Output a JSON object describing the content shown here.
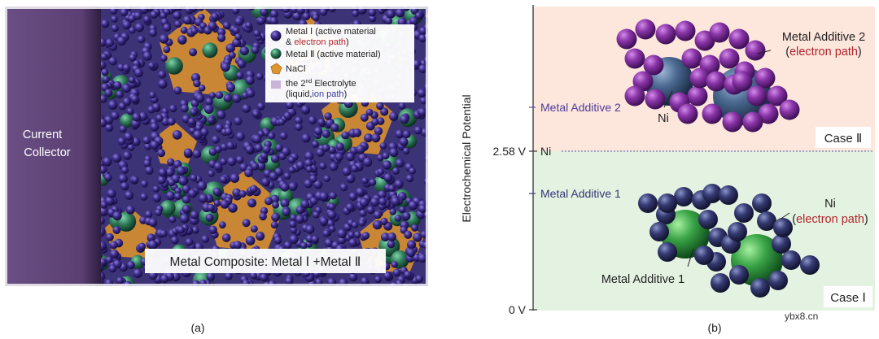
{
  "panel_a": {
    "caption": "(a)",
    "current_collector": [
      "Current",
      "Collector"
    ],
    "legend": {
      "metal1": {
        "pre": "Metal Ⅰ (active material",
        "line2_pre": "& ",
        "line2_red": "electron path",
        "line2_post": ")"
      },
      "metal2": {
        "text": "Metal Ⅱ (active material)"
      },
      "nacl": {
        "text": "NaCl"
      },
      "electrolyte": {
        "line1_pre": "the 2",
        "line1_sup": "nd",
        "line1_post": " Electrolyte",
        "line2_pre": "(liquid,",
        "line2_blue": "ion path",
        "line2_post": ")"
      }
    },
    "composite_label": "Metal Composite: Metal Ⅰ +Metal Ⅱ",
    "colors": {
      "collector": "#5b3f73",
      "metal1": "#3d2e8c",
      "metal2": "#2f7a5a",
      "nacl": "#d98f2b",
      "electrolyte": "#c8b4d6"
    }
  },
  "panel_b": {
    "caption": "(b)",
    "y_axis_label": "Electrochemical Potential",
    "ticks": {
      "v258": "2.58 V",
      "v0": "0 V"
    },
    "ni_line_label": "Ni",
    "level_upper": "Metal Additive 2",
    "level_lower": "Metal Additive 1",
    "case2": {
      "label": "Case Ⅱ",
      "additive_label": "Metal Additive 2",
      "additive_sub_pre": "(",
      "additive_sub_red": "electron path",
      "additive_sub_post": ")",
      "core_label": "Ni"
    },
    "case1": {
      "label": "Case Ⅰ",
      "ni_label": "Ni",
      "ni_sub_pre": "(",
      "ni_sub_red": "electron path",
      "ni_sub_post": ")",
      "core_label": "Metal Additive 1"
    },
    "colors": {
      "upper_bg": "#fde6dc",
      "lower_bg": "#e4f3e1",
      "purple": "#7a2c93",
      "navy": "#2c2f5c",
      "green": "#3aa447",
      "ni_blue": "#4a6890",
      "red_text": "#b0242c",
      "blue_text": "#3a3a8c"
    }
  },
  "watermark": "ybx8.cn"
}
